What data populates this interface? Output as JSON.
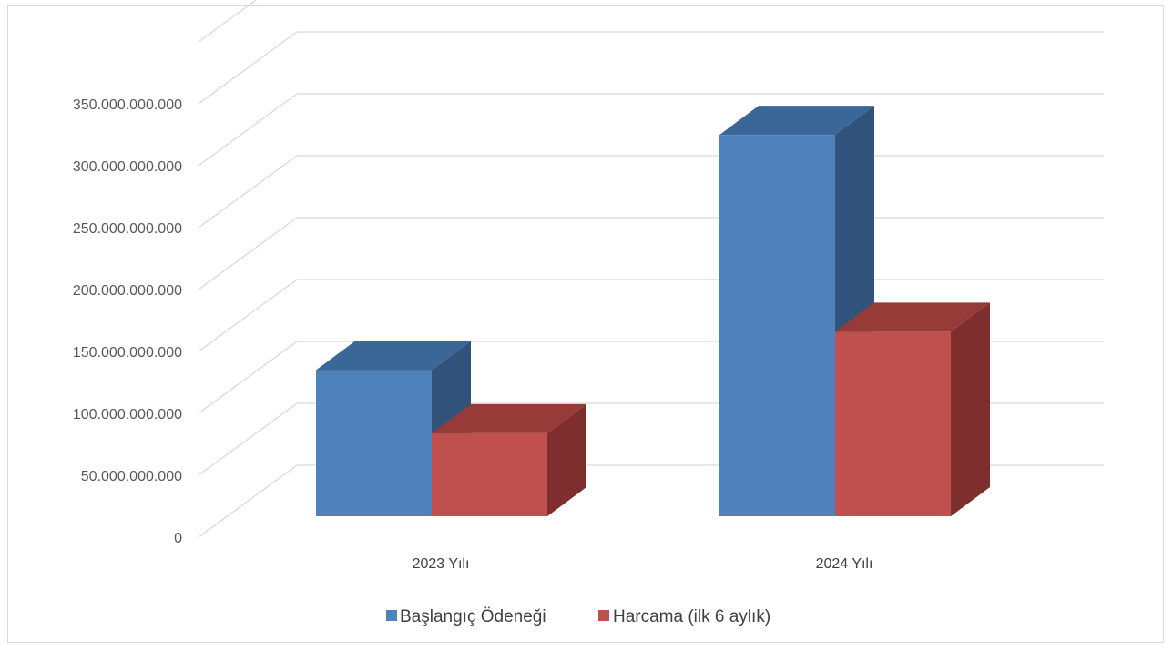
{
  "chart_data": {
    "type": "bar",
    "style": "3d-clustered-column",
    "categories": [
      "2023 Yılı",
      "2024 Yılı"
    ],
    "series": [
      {
        "name": "Başlangıç Ödeneği",
        "values": [
          118000000000,
          308000000000
        ],
        "color": "#4f81bd",
        "side_color": "#31527a",
        "top_color": "#3a6698"
      },
      {
        "name": "Harcama (ilk 6 aylık)",
        "values": [
          67000000000,
          149000000000
        ],
        "color": "#c0504d",
        "side_color": "#7d2e2d",
        "top_color": "#973b39"
      }
    ],
    "y_ticks": [
      "0",
      "50.000.000.000",
      "100.000.000.000",
      "150.000.000.000",
      "200.000.000.000",
      "250.000.000.000",
      "300.000.000.000",
      "350.000.000.000"
    ],
    "ylim": [
      0,
      350000000000
    ],
    "grid": true,
    "legend": "bottom",
    "grid_color": "#d9d9d9"
  }
}
